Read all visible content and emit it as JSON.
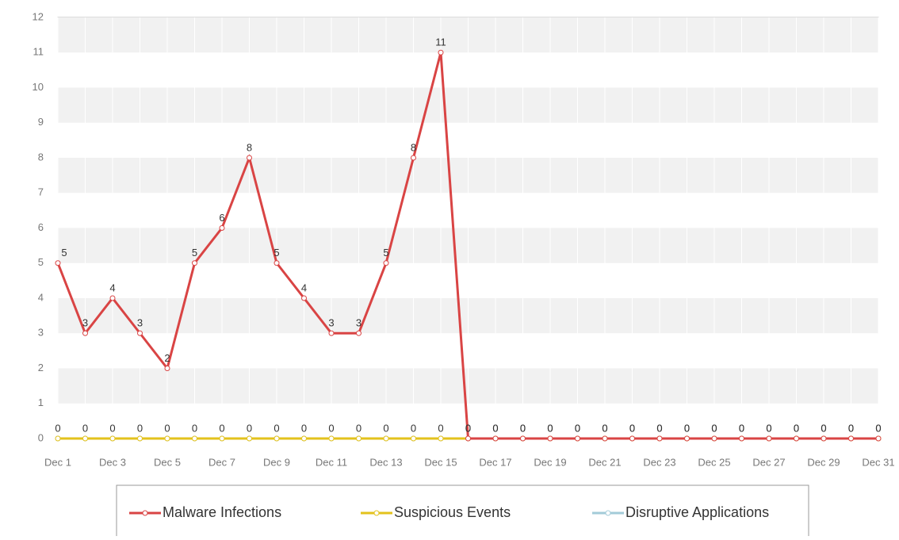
{
  "chart_data": {
    "type": "line",
    "categories": [
      "Dec 1",
      null,
      "Dec 3",
      null,
      "Dec 5",
      null,
      "Dec 7",
      null,
      "Dec 9",
      null,
      "Dec 11",
      null,
      "Dec 13",
      null,
      "Dec 15",
      null,
      "Dec 17",
      null,
      "Dec 19",
      null,
      "Dec 21",
      null,
      "Dec 23",
      null,
      "Dec 25",
      null,
      "Dec 27",
      null,
      "Dec 29",
      null,
      "Dec 31"
    ],
    "series": [
      {
        "name": "Malware Infections",
        "color": "#d94444",
        "values": [
          5,
          3,
          4,
          3,
          2,
          5,
          6,
          8,
          5,
          4,
          3,
          3,
          5,
          8,
          11,
          0,
          0,
          0,
          0,
          0,
          0,
          0,
          0,
          0,
          0,
          0,
          0,
          0,
          0,
          0,
          0
        ]
      },
      {
        "name": "Suspicious Events",
        "color": "#e3c21c",
        "values": [
          0,
          0,
          0,
          0,
          0,
          0,
          0,
          0,
          0,
          0,
          0,
          0,
          0,
          0,
          0,
          0,
          0,
          0,
          0,
          0,
          0,
          0,
          0,
          0,
          0,
          0,
          0,
          0,
          0,
          0,
          0
        ]
      },
      {
        "name": "Disruptive Applications",
        "color": "#a3cbd8",
        "values": [
          0,
          0,
          0,
          0,
          0,
          0,
          0,
          0,
          0,
          0,
          0,
          0,
          0,
          0,
          0,
          0,
          0,
          0,
          0,
          0,
          0,
          0,
          0,
          0,
          0,
          0,
          0,
          0,
          0,
          0,
          0
        ]
      }
    ],
    "ylim": [
      0,
      12
    ],
    "yticks": [
      0,
      1,
      2,
      3,
      4,
      5,
      6,
      7,
      8,
      9,
      10,
      11,
      12
    ],
    "grid": true,
    "legend": "bottom"
  }
}
